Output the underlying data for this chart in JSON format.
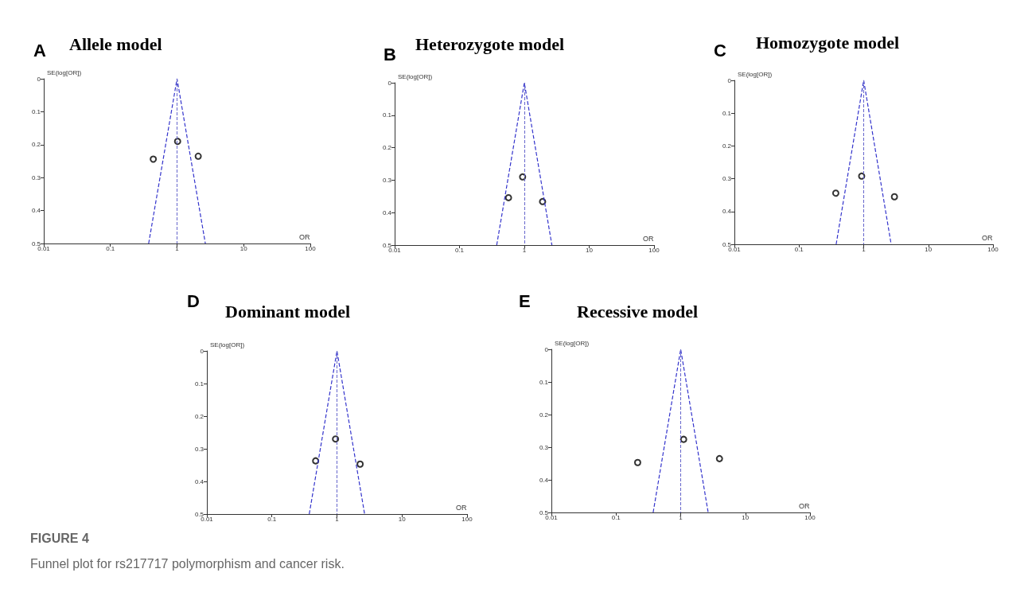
{
  "chart_data": [
    {
      "type": "scatter",
      "title": "Allele model",
      "annotations": [
        "A"
      ],
      "xlabel": "OR",
      "ylabel": "SE(log[OR])",
      "log": "x",
      "xlim": [
        0.01,
        100
      ],
      "xticks": [
        0.01,
        0.1,
        1,
        10,
        100
      ],
      "ylim": [
        0.5,
        0
      ],
      "yticks": [
        0,
        0.1,
        0.2,
        0.3,
        0.4,
        0.5
      ],
      "grid": false,
      "marker": "circle",
      "ref_lines": [
        {
          "axis": "x",
          "value": 1,
          "color": "#6666cc",
          "line_style": "dashed"
        }
      ],
      "series": [
        {
          "type": "scatter",
          "color": "#000000",
          "x": [
            0.44,
            1.02,
            2.08
          ],
          "values": [
            0.244,
            0.19,
            0.235
          ]
        },
        {
          "type": "line",
          "color": "#3333cc",
          "line_style": "dashed",
          "marker": "none",
          "x": [
            0.375,
            1,
            2.66
          ],
          "values": [
            0.5,
            0,
            0.5
          ]
        }
      ]
    },
    {
      "type": "scatter",
      "title": "Heterozygote model",
      "annotations": [
        "B"
      ],
      "xlabel": "OR",
      "ylabel": "SE(log[OR])",
      "log": "x",
      "xlim": [
        0.01,
        100
      ],
      "xticks": [
        0.01,
        0.1,
        1,
        10,
        100
      ],
      "ylim": [
        0.5,
        0
      ],
      "yticks": [
        0,
        0.1,
        0.2,
        0.3,
        0.4,
        0.5
      ],
      "grid": false,
      "marker": "circle",
      "ref_lines": [
        {
          "axis": "x",
          "value": 1,
          "color": "#6666cc",
          "line_style": "dashed"
        }
      ],
      "series": [
        {
          "type": "scatter",
          "color": "#000000",
          "x": [
            0.57,
            0.94,
            1.91
          ],
          "values": [
            0.354,
            0.29,
            0.366
          ]
        },
        {
          "type": "line",
          "color": "#3333cc",
          "line_style": "dashed",
          "marker": "none",
          "x": [
            0.375,
            1,
            2.66
          ],
          "values": [
            0.5,
            0,
            0.5
          ]
        }
      ]
    },
    {
      "type": "scatter",
      "title": "Homozygote model",
      "annotations": [
        "C"
      ],
      "xlabel": "OR",
      "ylabel": "SE(log[OR])",
      "log": "x",
      "xlim": [
        0.01,
        100
      ],
      "xticks": [
        0.01,
        0.1,
        1,
        10,
        100
      ],
      "ylim": [
        0.5,
        0
      ],
      "yticks": [
        0,
        0.1,
        0.2,
        0.3,
        0.4,
        0.5
      ],
      "grid": false,
      "marker": "circle",
      "ref_lines": [
        {
          "axis": "x",
          "value": 1,
          "color": "#6666cc",
          "line_style": "dashed"
        }
      ],
      "series": [
        {
          "type": "scatter",
          "color": "#000000",
          "x": [
            0.37,
            0.93,
            2.99
          ],
          "values": [
            0.344,
            0.292,
            0.355
          ]
        },
        {
          "type": "line",
          "color": "#3333cc",
          "line_style": "dashed",
          "marker": "none",
          "x": [
            0.375,
            1,
            2.66
          ],
          "values": [
            0.5,
            0,
            0.5
          ]
        }
      ]
    },
    {
      "type": "scatter",
      "title": "Dominant model",
      "annotations": [
        "D"
      ],
      "xlabel": "OR",
      "ylabel": "SE(log[OR])",
      "log": "x",
      "xlim": [
        0.01,
        100
      ],
      "xticks": [
        0.01,
        0.1,
        1,
        10,
        100
      ],
      "ylim": [
        0.5,
        0
      ],
      "yticks": [
        0,
        0.1,
        0.2,
        0.3,
        0.4,
        0.5
      ],
      "grid": false,
      "marker": "circle",
      "ref_lines": [
        {
          "axis": "x",
          "value": 1,
          "color": "#6666cc",
          "line_style": "dashed"
        }
      ],
      "series": [
        {
          "type": "scatter",
          "color": "#000000",
          "x": [
            0.47,
            0.95,
            2.27
          ],
          "values": [
            0.337,
            0.27,
            0.347
          ]
        },
        {
          "type": "line",
          "color": "#3333cc",
          "line_style": "dashed",
          "marker": "none",
          "x": [
            0.375,
            1,
            2.66
          ],
          "values": [
            0.5,
            0,
            0.5
          ]
        }
      ]
    },
    {
      "type": "scatter",
      "title": "Recessive model",
      "annotations": [
        "E",
        "FIGURE 4",
        "Funnel plot for rs217717 polymorphism and cancer risk."
      ],
      "xlabel": "OR",
      "ylabel": "SE(log[OR])",
      "log": "x",
      "xlim": [
        0.01,
        100
      ],
      "xticks": [
        0.01,
        0.1,
        1,
        10,
        100
      ],
      "ylim": [
        0.5,
        0
      ],
      "yticks": [
        0,
        0.1,
        0.2,
        0.3,
        0.4,
        0.5
      ],
      "grid": false,
      "marker": "circle",
      "ref_lines": [
        {
          "axis": "x",
          "value": 1,
          "color": "#6666cc",
          "line_style": "dashed"
        }
      ],
      "series": [
        {
          "type": "scatter",
          "color": "#000000",
          "x": [
            0.216,
            1.11,
            3.98
          ],
          "values": [
            0.347,
            0.276,
            0.335
          ]
        },
        {
          "type": "line",
          "color": "#3333cc",
          "line_style": "dashed",
          "marker": "none",
          "x": [
            0.375,
            1,
            2.66
          ],
          "values": [
            0.5,
            0,
            0.5
          ]
        }
      ]
    }
  ]
}
